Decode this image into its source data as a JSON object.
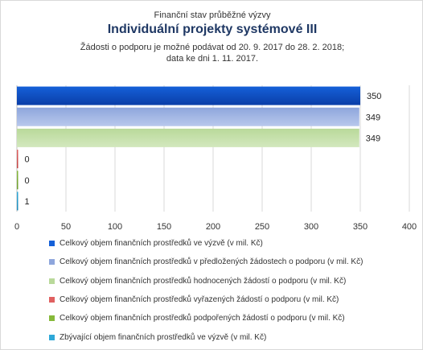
{
  "header": {
    "supertitle": "Finanční stav průběžné výzvy",
    "title": "Individuální projekty systémové III",
    "subtitle_line1": "Žádosti o podporu je možné podávat od 20. 9. 2017 do 28. 2. 2018;",
    "subtitle_line2": "data ke dni 1. 11. 2017."
  },
  "chart_data": {
    "type": "bar",
    "orientation": "horizontal",
    "xlim": [
      0,
      400
    ],
    "x_ticks": [
      "0",
      "50",
      "100",
      "150",
      "200",
      "250",
      "300",
      "350",
      "400"
    ],
    "grid": true,
    "legend_position": "bottom",
    "series": [
      {
        "name": "Celkový objem finančních prostředků ve výzvě (v mil. Kč)",
        "value": 350,
        "label": "350",
        "color": "#1560d8",
        "gradient_to": "#0a3ea8"
      },
      {
        "name": "Celkový objem finančních prostředků v předložených žádostech o podporu (v mil. Kč)",
        "value": 349,
        "label": "349",
        "color": "#8ea6dc",
        "gradient_to": "#b8c8ec"
      },
      {
        "name": "Celkový objem finančních prostředků hodnocených žádostí o podporu (v mil. Kč)",
        "value": 349,
        "label": "349",
        "color": "#b9d99a",
        "gradient_to": "#d3e8be"
      },
      {
        "name": "Celkový objem finančních prostředků vyřazených žádostí o podporu (v mil. Kč)",
        "value": 0.3,
        "label": "0",
        "color": "#e06060",
        "gradient_to": "#c04040"
      },
      {
        "name": "Celkový objem finančních prostředků podpořených žádostí o podporu (v mil. Kč)",
        "value": 0.3,
        "label": "0",
        "color": "#86b93a",
        "gradient_to": "#6a9a2a"
      },
      {
        "name": "Zbývající objem finančních prostředků ve výzvě (v mil. Kč)",
        "value": 1,
        "label": "1",
        "color": "#2ea8d8",
        "gradient_to": "#1a88b8"
      }
    ]
  }
}
